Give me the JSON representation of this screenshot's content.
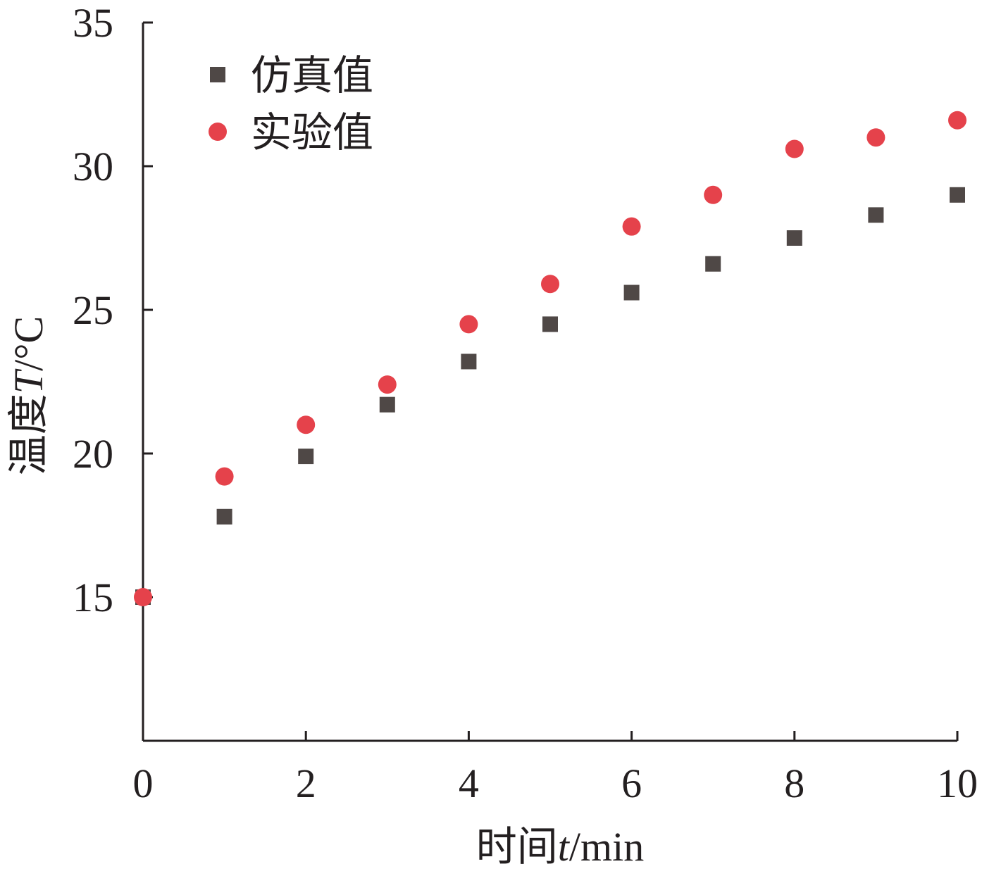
{
  "chart_data": {
    "type": "scatter",
    "title": "",
    "xlabel": {
      "prefix": "时间",
      "var": "t",
      "unit": "/min"
    },
    "ylabel": {
      "prefix": "温度",
      "var": "T",
      "unit": "/°C"
    },
    "xlim": [
      0,
      10
    ],
    "ylim": [
      10,
      35
    ],
    "x_ticks": [
      "0",
      "2",
      "4",
      "6",
      "8",
      "10"
    ],
    "y_ticks": [
      "15",
      "20",
      "25",
      "30",
      "35"
    ],
    "x_tick_values": [
      0,
      2,
      4,
      6,
      8,
      10
    ],
    "y_tick_values": [
      15,
      20,
      25,
      30,
      35
    ],
    "grid": false,
    "legend_position": "top-left",
    "series": [
      {
        "name": "仿真值",
        "marker": "square",
        "color": "#4f4846",
        "x": [
          0,
          1,
          2,
          3,
          4,
          5,
          6,
          7,
          8,
          9,
          10
        ],
        "y": [
          15.0,
          17.8,
          19.9,
          21.7,
          23.2,
          24.5,
          25.6,
          26.6,
          27.5,
          28.3,
          29.0
        ]
      },
      {
        "name": "实验值",
        "marker": "circle",
        "color": "#e5424b",
        "x": [
          0,
          1,
          2,
          3,
          4,
          5,
          6,
          7,
          8,
          9,
          10
        ],
        "y": [
          15.0,
          19.2,
          21.0,
          22.4,
          24.5,
          25.9,
          27.9,
          29.0,
          30.6,
          31.0,
          31.6
        ]
      }
    ]
  }
}
